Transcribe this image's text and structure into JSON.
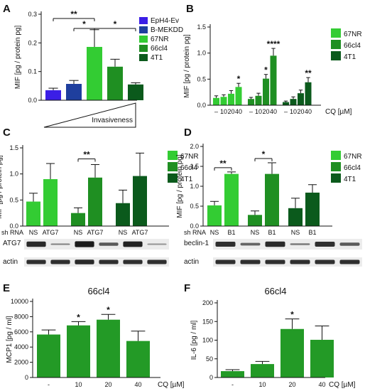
{
  "colors": {
    "ev": "#3b1ee6",
    "mekdd": "#1f3f9e",
    "nr67": "#33cc33",
    "cl66": "#1f8f22",
    "t41": "#0b5a1c",
    "bar_ef": "#239a26",
    "band": "#1b1b1b"
  },
  "chart_data": [
    {
      "panel": "A",
      "type": "bar",
      "ylabel": "MIF [pg / protein pg]",
      "ylim": [
        0,
        0.3
      ],
      "yticks": [
        "0.0",
        "0.1",
        "0.2",
        "0.3"
      ],
      "xlabel": "Invasiveness",
      "legend": [
        "EpH4-Ev",
        "B-MEKDD",
        "67NR",
        "66cl4",
        "4T1"
      ],
      "values": [
        0.035,
        0.057,
        0.186,
        0.117,
        0.055
      ],
      "errors": [
        0.007,
        0.012,
        0.06,
        0.026,
        0.006
      ],
      "annotations": [
        {
          "from": 0,
          "to": 2,
          "text": "**"
        },
        {
          "from": 1,
          "to": 2,
          "text": "*"
        },
        {
          "from": 2,
          "to": 4,
          "text": "*"
        }
      ]
    },
    {
      "panel": "B",
      "type": "bar",
      "ylabel": "MIF [pg / protein pg]",
      "ylim": [
        0,
        1.5
      ],
      "yticks": [
        "0.0",
        "0.5",
        "1.0",
        "1.5"
      ],
      "xlabel": "CQ [µM]",
      "categories": [
        "–",
        "10",
        "20",
        "40"
      ],
      "legend": [
        "67NR",
        "66cl4",
        "4T1"
      ],
      "series": [
        {
          "name": "67NR",
          "values": [
            0.14,
            0.16,
            0.22,
            0.35
          ],
          "errors": [
            0.04,
            0.04,
            0.06,
            0.07
          ],
          "stars": [
            "",
            "",
            "",
            "*"
          ]
        },
        {
          "name": "66cl4",
          "values": [
            0.12,
            0.18,
            0.51,
            0.95
          ],
          "errors": [
            0.03,
            0.05,
            0.08,
            0.14
          ],
          "stars": [
            "",
            "",
            "*",
            "****"
          ]
        },
        {
          "name": "4T1",
          "values": [
            0.06,
            0.12,
            0.23,
            0.44
          ],
          "errors": [
            0.02,
            0.04,
            0.06,
            0.09
          ],
          "stars": [
            "",
            "",
            "",
            "**"
          ]
        }
      ]
    },
    {
      "panel": "C",
      "type": "bar",
      "ylabel": "MIF [pg / protein pg]",
      "ylim": [
        0,
        1.5
      ],
      "yticks": [
        "0.0",
        "0.5",
        "1.0",
        "1.5"
      ],
      "row_label": "sh RNA",
      "categories": [
        "NS",
        "ATG7"
      ],
      "legend": [
        "67NR",
        "66cl4",
        "4T1"
      ],
      "series": [
        {
          "name": "67NR",
          "values": [
            0.47,
            0.9
          ],
          "errors": [
            0.16,
            0.3
          ]
        },
        {
          "name": "66cl4",
          "values": [
            0.25,
            0.93
          ],
          "errors": [
            0.1,
            0.25
          ]
        },
        {
          "name": "4T1",
          "values": [
            0.44,
            0.96
          ],
          "errors": [
            0.25,
            0.44
          ]
        }
      ],
      "annotations": [
        {
          "group": 1,
          "text": "**"
        }
      ],
      "blots": [
        "ATG7",
        "actin"
      ]
    },
    {
      "panel": "D",
      "type": "bar",
      "ylabel": "MIF [pg / protein pg]",
      "ylim": [
        0,
        2.0
      ],
      "yticks": [
        "0.0",
        "0.5",
        "1.0",
        "1.5",
        "2.0"
      ],
      "row_label": "sh RNA",
      "categories": [
        "NS",
        "B1"
      ],
      "legend": [
        "67NR",
        "66cl4",
        "4T1"
      ],
      "series": [
        {
          "name": "67NR",
          "values": [
            0.52,
            1.31
          ],
          "errors": [
            0.1,
            0.05
          ]
        },
        {
          "name": "66cl4",
          "values": [
            0.28,
            1.31
          ],
          "errors": [
            0.1,
            0.28
          ]
        },
        {
          "name": "4T1",
          "values": [
            0.45,
            0.84
          ],
          "errors": [
            0.25,
            0.2
          ]
        }
      ],
      "annotations": [
        {
          "group": 0,
          "text": "**"
        },
        {
          "group": 1,
          "text": "*"
        }
      ],
      "blots": [
        "beclin-1",
        "actin"
      ]
    },
    {
      "panel": "E",
      "type": "bar",
      "title": "66cl4",
      "ylabel": "MCP1 [pg / ml]",
      "ylim": [
        0,
        10000
      ],
      "yticks": [
        "0",
        "2000",
        "4000",
        "6000",
        "8000",
        "10000"
      ],
      "xlabel": "CQ [µM]",
      "categories": [
        "-",
        "10",
        "20",
        "40"
      ],
      "values": [
        5650,
        6850,
        7600,
        4800
      ],
      "errors": [
        600,
        500,
        700,
        1300
      ],
      "stars": [
        "",
        "*",
        "*",
        ""
      ]
    },
    {
      "panel": "F",
      "type": "bar",
      "title": "66cl4",
      "ylabel": "IL-6 [pg / ml]",
      "ylim": [
        0,
        200
      ],
      "yticks": [
        "0",
        "50",
        "100",
        "150",
        "200"
      ],
      "xlabel": "CQ [µM]",
      "categories": [
        "-",
        "10",
        "20",
        "40"
      ],
      "values": [
        17,
        36,
        130,
        101
      ],
      "errors": [
        4,
        7,
        27,
        37
      ],
      "stars": [
        "",
        "",
        "*",
        ""
      ]
    }
  ]
}
